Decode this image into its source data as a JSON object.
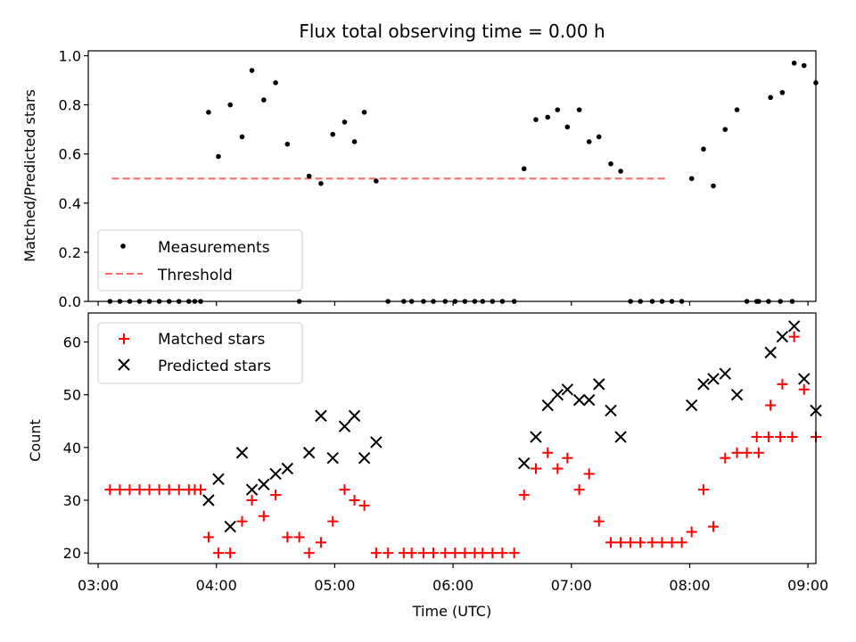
{
  "chart_data": [
    {
      "type": "scatter",
      "title": "Flux total observing time = 0.00 h",
      "xlabel": "",
      "ylabel": "Matched/Predicted stars",
      "x_axis": "time (UTC), shared with lower panel",
      "xlim": [
        "02:55",
        "09:04"
      ],
      "ylim": [
        0.0,
        1.02
      ],
      "yticks": [
        "0.0",
        "0.2",
        "0.4",
        "0.6",
        "0.8",
        "1.0"
      ],
      "grid": false,
      "legend": {
        "placement": "lower-left",
        "entries": [
          "Measurements",
          "Threshold"
        ]
      },
      "series": [
        {
          "name": "Measurements",
          "marker": "dot",
          "color": "#000000",
          "points": [
            [
              "03:06",
              0
            ],
            [
              "03:11",
              0
            ],
            [
              "03:16",
              0
            ],
            [
              "03:21",
              0
            ],
            [
              "03:26",
              0
            ],
            [
              "03:31",
              0
            ],
            [
              "03:36",
              0
            ],
            [
              "03:41",
              0
            ],
            [
              "03:46",
              0
            ],
            [
              "03:49",
              0
            ],
            [
              "03:52",
              0
            ],
            [
              "03:56",
              0.77
            ],
            [
              "04:01",
              0.59
            ],
            [
              "04:07",
              0.8
            ],
            [
              "04:13",
              0.67
            ],
            [
              "04:18",
              0.94
            ],
            [
              "04:24",
              0.82
            ],
            [
              "04:30",
              0.89
            ],
            [
              "04:36",
              0.64
            ],
            [
              "04:42",
              0
            ],
            [
              "04:47",
              0.51
            ],
            [
              "04:53",
              0.48
            ],
            [
              "04:59",
              0.68
            ],
            [
              "05:05",
              0.73
            ],
            [
              "05:10",
              0.65
            ],
            [
              "05:15",
              0.77
            ],
            [
              "05:21",
              0.49
            ],
            [
              "05:27",
              0
            ],
            [
              "05:35",
              0
            ],
            [
              "05:39",
              0
            ],
            [
              "05:45",
              0
            ],
            [
              "05:50",
              0
            ],
            [
              "05:56",
              0
            ],
            [
              "06:01",
              0
            ],
            [
              "06:06",
              0
            ],
            [
              "06:11",
              0
            ],
            [
              "06:15",
              0
            ],
            [
              "06:20",
              0
            ],
            [
              "06:25",
              0
            ],
            [
              "06:31",
              0
            ],
            [
              "06:36",
              0.54
            ],
            [
              "06:42",
              0.74
            ],
            [
              "06:48",
              0.75
            ],
            [
              "06:53",
              0.78
            ],
            [
              "06:58",
              0.71
            ],
            [
              "07:04",
              0.78
            ],
            [
              "07:09",
              0.65
            ],
            [
              "07:14",
              0.67
            ],
            [
              "07:20",
              0.56
            ],
            [
              "07:25",
              0.53
            ],
            [
              "07:30",
              0
            ],
            [
              "07:35",
              0
            ],
            [
              "07:41",
              0
            ],
            [
              "07:46",
              0
            ],
            [
              "07:51",
              0
            ],
            [
              "07:56",
              0
            ],
            [
              "08:01",
              0.5
            ],
            [
              "08:07",
              0.62
            ],
            [
              "08:12",
              0.47
            ],
            [
              "08:18",
              0.7
            ],
            [
              "08:24",
              0.78
            ],
            [
              "08:29",
              0
            ],
            [
              "08:35",
              0
            ],
            [
              "08:41",
              0.83
            ],
            [
              "08:47",
              0.85
            ],
            [
              "08:53",
              0.97
            ],
            [
              "08:58",
              0.96
            ],
            [
              "09:04",
              0.89
            ],
            [
              "08:34",
              0
            ],
            [
              "08:40",
              0
            ],
            [
              "08:46",
              0
            ],
            [
              "08:52",
              0
            ]
          ]
        },
        {
          "name": "Threshold",
          "style": "dashed",
          "color": "#ff6666",
          "x": [
            "03:07",
            "07:48"
          ],
          "y": [
            0.5,
            0.5
          ]
        }
      ]
    },
    {
      "type": "scatter",
      "title": "",
      "xlabel": "Time (UTC)",
      "ylabel": "Count",
      "xlim": [
        "02:55",
        "09:04"
      ],
      "xticks": [
        "03:00",
        "04:00",
        "05:00",
        "06:00",
        "07:00",
        "08:00",
        "09:00"
      ],
      "ylim": [
        18,
        65.5
      ],
      "yticks": [
        "20",
        "30",
        "40",
        "50",
        "60"
      ],
      "grid": false,
      "legend": {
        "placement": "top-left",
        "entries": [
          "Matched stars",
          "Predicted stars"
        ]
      },
      "series": [
        {
          "name": "Matched stars",
          "marker": "plus",
          "color": "#ff0000",
          "points": [
            [
              "03:06",
              32
            ],
            [
              "03:11",
              32
            ],
            [
              "03:16",
              32
            ],
            [
              "03:21",
              32
            ],
            [
              "03:26",
              32
            ],
            [
              "03:31",
              32
            ],
            [
              "03:36",
              32
            ],
            [
              "03:41",
              32
            ],
            [
              "03:46",
              32
            ],
            [
              "03:49",
              32
            ],
            [
              "03:52",
              32
            ],
            [
              "03:56",
              23
            ],
            [
              "04:01",
              20
            ],
            [
              "04:07",
              20
            ],
            [
              "04:13",
              26
            ],
            [
              "04:18",
              30
            ],
            [
              "04:24",
              27
            ],
            [
              "04:30",
              31
            ],
            [
              "04:36",
              23
            ],
            [
              "04:42",
              23
            ],
            [
              "04:47",
              20
            ],
            [
              "04:53",
              22
            ],
            [
              "04:59",
              26
            ],
            [
              "05:05",
              32
            ],
            [
              "05:10",
              30
            ],
            [
              "05:15",
              29
            ],
            [
              "05:21",
              20
            ],
            [
              "05:27",
              20
            ],
            [
              "05:35",
              20
            ],
            [
              "05:39",
              20
            ],
            [
              "05:45",
              20
            ],
            [
              "05:50",
              20
            ],
            [
              "05:56",
              20
            ],
            [
              "06:01",
              20
            ],
            [
              "06:06",
              20
            ],
            [
              "06:11",
              20
            ],
            [
              "06:15",
              20
            ],
            [
              "06:20",
              20
            ],
            [
              "06:25",
              20
            ],
            [
              "06:31",
              20
            ],
            [
              "06:36",
              31
            ],
            [
              "06:42",
              36
            ],
            [
              "06:48",
              39
            ],
            [
              "06:53",
              36
            ],
            [
              "06:58",
              38
            ],
            [
              "07:04",
              32
            ],
            [
              "07:09",
              35
            ],
            [
              "07:14",
              26
            ],
            [
              "07:20",
              22
            ],
            [
              "07:25",
              22
            ],
            [
              "07:30",
              22
            ],
            [
              "07:35",
              22
            ],
            [
              "07:41",
              22
            ],
            [
              "07:46",
              22
            ],
            [
              "07:51",
              22
            ],
            [
              "07:56",
              22
            ],
            [
              "08:01",
              24
            ],
            [
              "08:07",
              32
            ],
            [
              "08:12",
              25
            ],
            [
              "08:18",
              38
            ],
            [
              "08:24",
              39
            ],
            [
              "08:29",
              39
            ],
            [
              "08:35",
              39
            ],
            [
              "08:41",
              48
            ],
            [
              "08:47",
              52
            ],
            [
              "08:53",
              61
            ],
            [
              "08:58",
              51
            ],
            [
              "09:04",
              42
            ],
            [
              "08:34",
              42
            ],
            [
              "08:40",
              42
            ],
            [
              "08:46",
              42
            ],
            [
              "08:52",
              42
            ]
          ]
        },
        {
          "name": "Predicted stars",
          "marker": "x",
          "color": "#000000",
          "points": [
            [
              "03:56",
              30
            ],
            [
              "04:01",
              34
            ],
            [
              "04:07",
              25
            ],
            [
              "04:13",
              39
            ],
            [
              "04:18",
              32
            ],
            [
              "04:24",
              33
            ],
            [
              "04:30",
              35
            ],
            [
              "04:36",
              36
            ],
            [
              "04:47",
              39
            ],
            [
              "04:53",
              46
            ],
            [
              "04:59",
              38
            ],
            [
              "05:05",
              44
            ],
            [
              "05:10",
              46
            ],
            [
              "05:15",
              38
            ],
            [
              "05:21",
              41
            ],
            [
              "06:36",
              37
            ],
            [
              "06:42",
              42
            ],
            [
              "06:48",
              48
            ],
            [
              "06:53",
              50
            ],
            [
              "06:58",
              51
            ],
            [
              "07:04",
              49
            ],
            [
              "07:09",
              49
            ],
            [
              "07:14",
              52
            ],
            [
              "07:20",
              47
            ],
            [
              "07:25",
              42
            ],
            [
              "08:01",
              48
            ],
            [
              "08:07",
              52
            ],
            [
              "08:12",
              53
            ],
            [
              "08:18",
              54
            ],
            [
              "08:24",
              50
            ],
            [
              "08:41",
              58
            ],
            [
              "08:47",
              61
            ],
            [
              "08:53",
              63
            ],
            [
              "08:58",
              53
            ],
            [
              "09:04",
              47
            ]
          ]
        }
      ]
    }
  ]
}
